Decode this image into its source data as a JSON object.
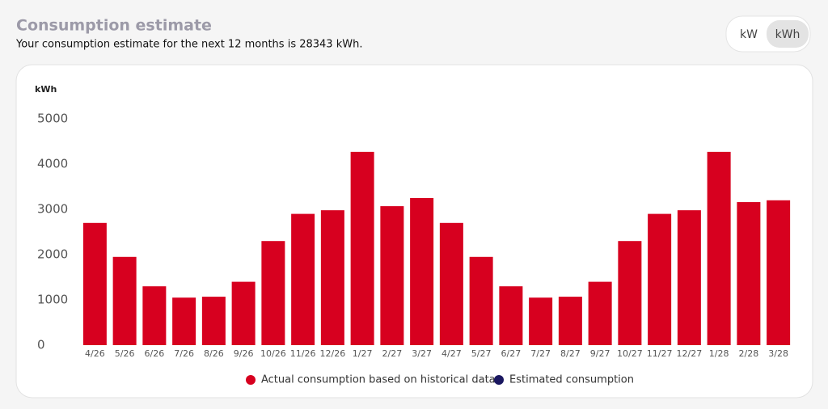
{
  "header": {
    "title": "Consumption estimate",
    "subtitle": "Your consumption estimate for the next 12 months is 28343 kWh."
  },
  "toggle": {
    "options": [
      {
        "label": "kW",
        "selected": false
      },
      {
        "label": "kWh",
        "selected": true
      }
    ]
  },
  "chart_data": {
    "type": "bar",
    "ylabel": "kWh",
    "categories": [
      "4/26",
      "5/26",
      "6/26",
      "7/26",
      "8/26",
      "9/26",
      "10/26",
      "11/26",
      "12/26",
      "1/27",
      "2/27",
      "3/27",
      "4/27",
      "5/27",
      "6/27",
      "7/27",
      "8/27",
      "9/27",
      "10/27",
      "11/27",
      "12/27",
      "1/28",
      "2/28",
      "3/28"
    ],
    "series": [
      {
        "name": "Actual consumption based on historical data",
        "color": "#d7001f",
        "values": [
          2700,
          1950,
          1300,
          1050,
          1070,
          1400,
          2300,
          2900,
          2980,
          4270,
          3070,
          3250,
          2700,
          1950,
          1300,
          1050,
          1070,
          1400,
          2300,
          2900,
          2980,
          4270,
          3160,
          3200
        ]
      },
      {
        "name": "Estimated consumption",
        "color": "#1a1760",
        "values": [
          null,
          null,
          null,
          null,
          null,
          null,
          null,
          null,
          null,
          null,
          null,
          null,
          null,
          null,
          null,
          null,
          null,
          null,
          null,
          null,
          null,
          null,
          null,
          null
        ]
      }
    ],
    "ylim": [
      0,
      5000
    ],
    "yticks": [
      0,
      1000,
      2000,
      3000,
      4000,
      5000
    ],
    "grid": false,
    "legend": "bottom"
  }
}
